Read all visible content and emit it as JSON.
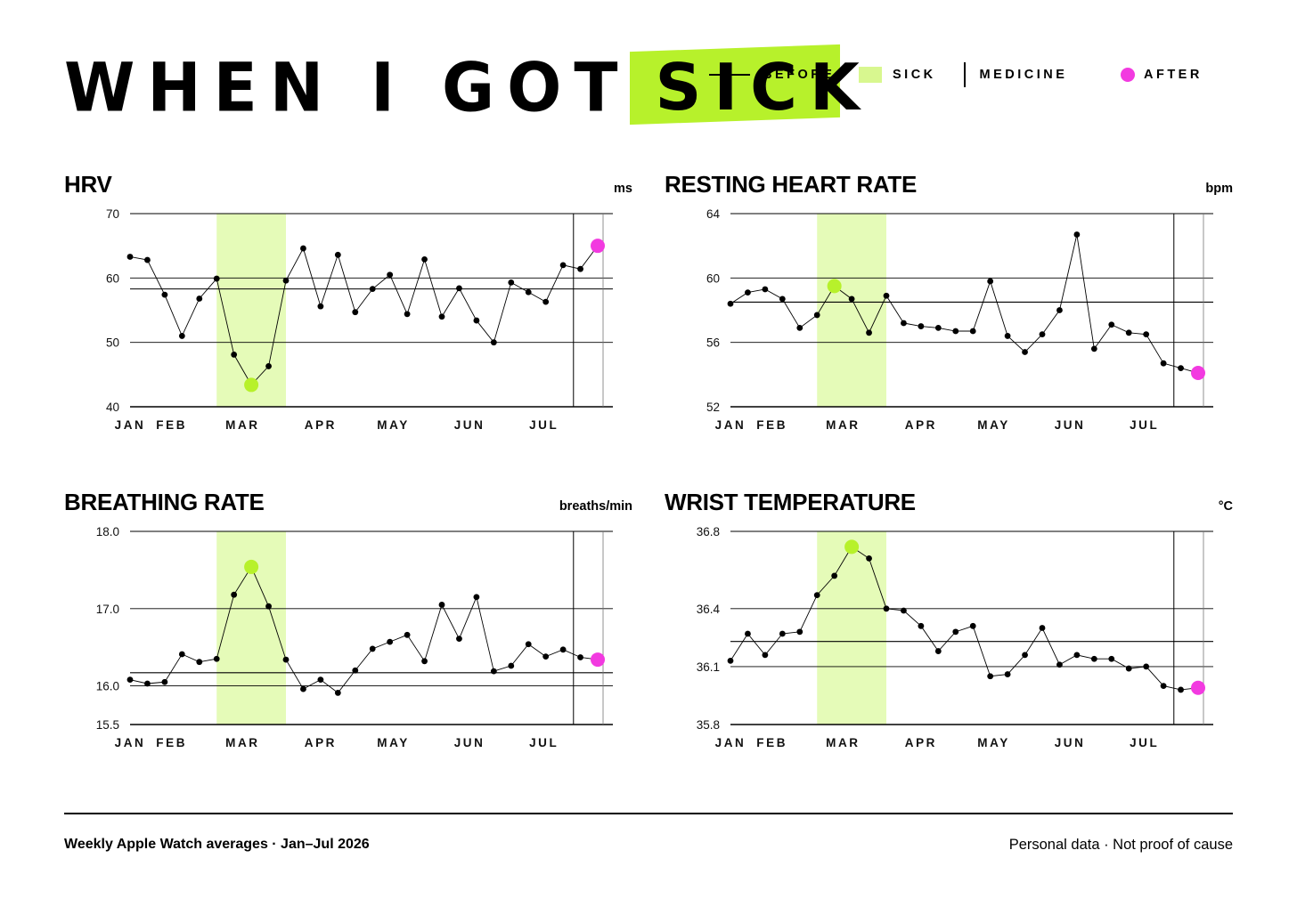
{
  "title": {
    "plain": "WHEN I GOT",
    "highlight": "SICK"
  },
  "legend": {
    "before": "BEFORE",
    "sick": "SICK",
    "medicine": "MEDICINE",
    "after": "AFTER"
  },
  "colors": {
    "sick_band": "#e5fbb8",
    "sick_dot": "#b7f12b",
    "after_dot": "#f23ae0",
    "line": "#000000",
    "highlight": "#b7f12b"
  },
  "months": [
    "JAN",
    "FEB",
    "MAR",
    "APR",
    "MAY",
    "JUN",
    "JUL"
  ],
  "footer": {
    "left": "Weekly Apple Watch averages · Jan–Jul 2026",
    "right": "Personal data · Not proof of cause"
  },
  "chart_data": [
    {
      "type": "line",
      "title": "HRV",
      "unit": "ms",
      "ylim": [
        40,
        70
      ],
      "yticks": [
        "70",
        "60",
        "50",
        "40"
      ],
      "ytick_values": [
        70,
        60,
        50,
        40
      ],
      "reference_lines": [
        58.3
      ],
      "x": [
        1,
        2,
        3,
        4,
        5,
        6,
        7,
        8,
        9,
        10,
        11,
        12,
        13,
        14,
        15,
        16,
        17,
        18,
        19,
        20,
        21,
        22,
        23,
        24,
        25,
        26,
        27,
        28
      ],
      "values": [
        63.3,
        62.8,
        57.4,
        51.0,
        56.8,
        59.9,
        48.1,
        43.4,
        46.3,
        59.6,
        64.6,
        55.6,
        63.6,
        54.7,
        58.3,
        60.5,
        54.4,
        62.9,
        54.0,
        58.4,
        53.4,
        50.0,
        59.3,
        57.8,
        56.3,
        62.0,
        61.4,
        65.0
      ],
      "sick_weeks": [
        6,
        10
      ],
      "sick_peak_index": 7,
      "medicine_week": 26.6,
      "after_index": 27
    },
    {
      "type": "line",
      "title": "RESTING HEART RATE",
      "unit": "bpm",
      "ylim": [
        52,
        64
      ],
      "yticks": [
        "64",
        "60",
        "56",
        "52"
      ],
      "ytick_values": [
        64,
        60,
        56,
        52
      ],
      "reference_lines": [
        58.5
      ],
      "x": [
        1,
        2,
        3,
        4,
        5,
        6,
        7,
        8,
        9,
        10,
        11,
        12,
        13,
        14,
        15,
        16,
        17,
        18,
        19,
        20,
        21,
        22,
        23,
        24,
        25,
        26,
        27,
        28
      ],
      "values": [
        58.4,
        59.1,
        59.3,
        58.7,
        56.9,
        57.7,
        59.5,
        58.7,
        56.6,
        58.9,
        57.2,
        57.0,
        56.9,
        56.7,
        56.7,
        59.8,
        56.4,
        55.4,
        56.5,
        58.0,
        62.7,
        55.6,
        57.1,
        56.6,
        56.5,
        54.7,
        54.4,
        54.1
      ],
      "sick_weeks": [
        6,
        10
      ],
      "sick_peak_index": 6,
      "medicine_week": 26.6,
      "after_index": 27
    },
    {
      "type": "line",
      "title": "BREATHING RATE",
      "unit": "breaths/min",
      "ylim": [
        15.5,
        18.0
      ],
      "yticks": [
        "18.0",
        "17.0",
        "16.0",
        "15.5"
      ],
      "ytick_values": [
        18.0,
        17.0,
        16.0,
        15.5
      ],
      "reference_lines": [
        16.17
      ],
      "x": [
        1,
        2,
        3,
        4,
        5,
        6,
        7,
        8,
        9,
        10,
        11,
        12,
        13,
        14,
        15,
        16,
        17,
        18,
        19,
        20,
        21,
        22,
        23,
        24,
        25,
        26,
        27,
        28
      ],
      "values": [
        16.08,
        16.03,
        16.05,
        16.41,
        16.31,
        16.35,
        17.18,
        17.54,
        17.03,
        16.34,
        15.96,
        16.08,
        15.91,
        16.2,
        16.48,
        16.57,
        16.66,
        16.32,
        17.05,
        16.61,
        17.15,
        16.19,
        16.26,
        16.54,
        16.38,
        16.47,
        16.37,
        16.34
      ],
      "sick_weeks": [
        6,
        10
      ],
      "sick_peak_index": 7,
      "medicine_week": 26.6,
      "after_index": 27
    },
    {
      "type": "line",
      "title": "WRIST TEMPERATURE",
      "unit": "°C",
      "ylim": [
        35.8,
        36.8
      ],
      "yticks": [
        "36.8",
        "36.4",
        "36.1",
        "35.8"
      ],
      "ytick_values": [
        36.8,
        36.4,
        36.1,
        35.8
      ],
      "reference_lines": [
        36.23
      ],
      "x": [
        1,
        2,
        3,
        4,
        5,
        6,
        7,
        8,
        9,
        10,
        11,
        12,
        13,
        14,
        15,
        16,
        17,
        18,
        19,
        20,
        21,
        22,
        23,
        24,
        25,
        26,
        27,
        28
      ],
      "values": [
        36.13,
        36.27,
        36.16,
        36.27,
        36.28,
        36.47,
        36.57,
        36.72,
        36.66,
        36.4,
        36.39,
        36.31,
        36.18,
        36.28,
        36.31,
        36.05,
        36.06,
        36.16,
        36.3,
        36.11,
        36.16,
        36.14,
        36.14,
        36.09,
        36.1,
        36.0,
        35.98,
        35.99
      ],
      "sick_weeks": [
        6,
        10
      ],
      "sick_peak_index": 7,
      "medicine_week": 26.6,
      "after_index": 27
    }
  ]
}
